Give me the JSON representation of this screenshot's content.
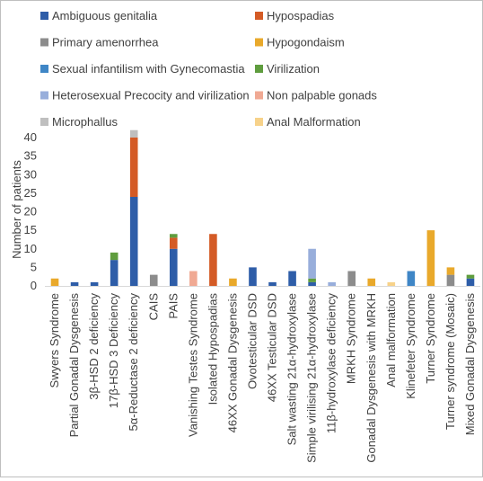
{
  "chart_data": {
    "type": "bar",
    "stacked": true,
    "ylabel": "Number of patients",
    "xlabel": "",
    "ylim": [
      0,
      40
    ],
    "yticks": [
      0,
      5,
      10,
      15,
      20,
      25,
      30,
      35,
      40
    ],
    "grid": false,
    "legend_position": "top",
    "categories": [
      "Swyers Syndrome",
      "Partial Gonadal Dysgenesis",
      "3β-HSD 2 deficiency",
      "17β-HSD 3 Deficiency",
      "5α-Reductase 2 deficiency",
      "CAIS",
      "PAIS",
      "Vanishing Testes Syndrome",
      "Isolated Hypospadias",
      "46XX Gonadal Dysgenesis",
      "Ovotesticular DSD",
      "46XX Testicular DSD",
      "Salt wasting 21α-hydroxylase",
      "Simple virilising 21α-hydroxylase",
      "11β-hydroxylase deficiency",
      "MRKH Syndrome",
      "Gonadal Dysgenesis with MRKH",
      "Anal malformation",
      "Klinefeter Syndrome",
      "Turner Syndrome",
      "Turner syndrome (Mosaic)",
      "Mixed Gonadal Dysgenesis"
    ],
    "series": [
      {
        "name": "Ambiguous genitalia",
        "color": "#2e5da8",
        "values": [
          0,
          1,
          1,
          7,
          24,
          0,
          10,
          0,
          0,
          0,
          5,
          1,
          4,
          1,
          0,
          0,
          0,
          0,
          0,
          0,
          0,
          2
        ]
      },
      {
        "name": "Hypospadias",
        "color": "#d45b26",
        "values": [
          0,
          0,
          0,
          0,
          16,
          0,
          3,
          0,
          14,
          0,
          0,
          0,
          0,
          0,
          0,
          0,
          0,
          0,
          0,
          0,
          0,
          0
        ]
      },
      {
        "name": "Primary amenorrhea",
        "color": "#8c8c8c",
        "values": [
          0,
          0,
          0,
          0,
          0,
          3,
          0,
          0,
          0,
          0,
          0,
          0,
          0,
          0,
          0,
          4,
          0,
          0,
          0,
          0,
          3,
          0
        ]
      },
      {
        "name": "Hypogondaism",
        "color": "#e9a92b",
        "values": [
          2,
          0,
          0,
          0,
          0,
          0,
          0,
          0,
          0,
          2,
          0,
          0,
          0,
          0,
          0,
          0,
          2,
          0,
          0,
          15,
          2,
          0
        ]
      },
      {
        "name": "Sexual infantilism with Gynecomastia",
        "color": "#3f86c6",
        "values": [
          0,
          0,
          0,
          0,
          0,
          0,
          0,
          0,
          0,
          0,
          0,
          0,
          0,
          0,
          0,
          0,
          0,
          0,
          4,
          0,
          0,
          0
        ]
      },
      {
        "name": "Virilization",
        "color": "#5f9d3e",
        "values": [
          0,
          0,
          0,
          2,
          0,
          0,
          1,
          0,
          0,
          0,
          0,
          0,
          0,
          1,
          0,
          0,
          0,
          0,
          0,
          0,
          0,
          1
        ]
      },
      {
        "name": "Heterosexual Precocity and virilization",
        "color": "#98aedb",
        "values": [
          0,
          0,
          0,
          0,
          0,
          0,
          0,
          0,
          0,
          0,
          0,
          0,
          0,
          8,
          1,
          0,
          0,
          0,
          0,
          0,
          0,
          0
        ]
      },
      {
        "name": "Non palpable gonads",
        "color": "#f0a993",
        "values": [
          0,
          0,
          0,
          0,
          0,
          0,
          0,
          4,
          0,
          0,
          0,
          0,
          0,
          0,
          0,
          0,
          0,
          0,
          0,
          0,
          0,
          0
        ]
      },
      {
        "name": "Microphallus",
        "color": "#bfbfbf",
        "values": [
          0,
          0,
          0,
          0,
          2,
          0,
          0,
          0,
          0,
          0,
          0,
          0,
          0,
          0,
          0,
          0,
          0,
          0,
          0,
          0,
          0,
          0
        ]
      },
      {
        "name": "Anal Malformation",
        "color": "#f7d28a",
        "values": [
          0,
          0,
          0,
          0,
          0,
          0,
          0,
          0,
          0,
          0,
          0,
          0,
          0,
          0,
          0,
          0,
          0,
          1,
          0,
          0,
          0,
          0
        ]
      }
    ]
  }
}
